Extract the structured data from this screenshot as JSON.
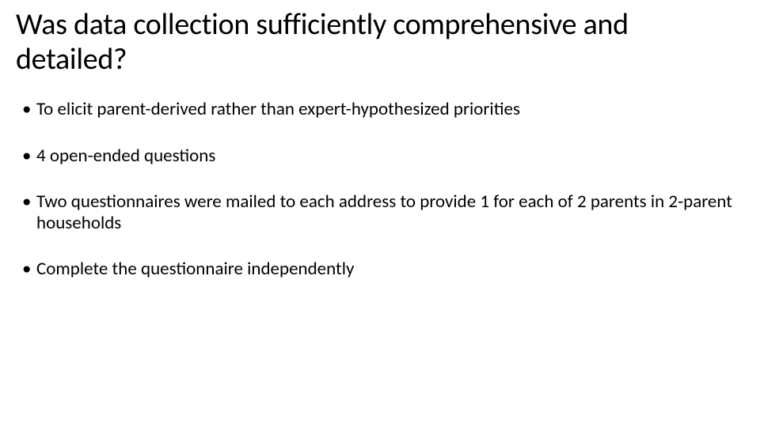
{
  "slide": {
    "title": "Was data collection sufficiently comprehensive and detailed?",
    "bullets": [
      "To elicit parent-derived rather than expert-hypothesized priorities",
      " 4 open-ended questions",
      "Two questionnaires were mailed to each address to provide 1 for each of 2 parents in 2-parent households",
      "Complete the questionnaire independently"
    ],
    "style": {
      "background_color": "#ffffff",
      "text_color": "#000000",
      "title_fontsize": 38,
      "title_fontweight": 400,
      "bullet_fontsize": 23,
      "bullet_fontweight": 400,
      "font_family": "Calibri"
    }
  }
}
